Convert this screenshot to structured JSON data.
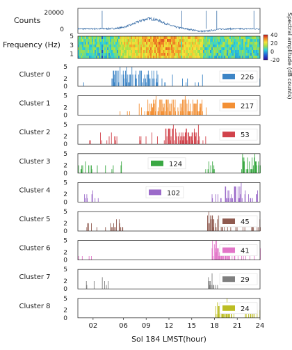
{
  "chart_data": {
    "type": "bar",
    "xlabel": "Sol 184 LMST(hour)",
    "xlim": [
      0,
      24
    ],
    "xticks": [
      2,
      6,
      9,
      12,
      15,
      18,
      21,
      24
    ],
    "xtick_labels": [
      "02",
      "06",
      "09",
      "12",
      "15",
      "18",
      "21",
      "24"
    ],
    "counts_panel": {
      "ylabel": "Counts",
      "ylim": [
        -5000,
        25000
      ],
      "yticks": [
        0,
        20000
      ],
      "color": "#3b6fa8",
      "baseline": 500,
      "hump_center_hour": 9.5,
      "hump_peak": 12000,
      "trough_center_hour": 16.5,
      "trough_value": -3000,
      "spike_hours": [
        3.2,
        13.7,
        16.9,
        18.3,
        23.2
      ],
      "spike_value": 22000
    },
    "spectrogram": {
      "ylabel": "Frequency (Hz)",
      "ylim": [
        0,
        5
      ],
      "yticks": [
        1,
        3,
        5
      ],
      "colorbar_label": "Spectral amplitude (dB counts)",
      "colorbar_range": [
        -20,
        40
      ],
      "colorbar_ticks": [
        40,
        20,
        0,
        -20
      ],
      "loud_interval_hours": [
        5.5,
        16.5
      ]
    },
    "clusters": [
      {
        "name": "Cluster 0",
        "count": "226",
        "color": "#3d85c6",
        "ylim": [
          0,
          5
        ],
        "yticks": [
          0,
          2,
          5
        ],
        "active_hours": [
          [
            0.5,
            16.5
          ],
          [
            23.6,
            24
          ]
        ],
        "peak_hours": [
          4.5,
          10.5
        ]
      },
      {
        "name": "Cluster 1",
        "count": "217",
        "color": "#f39035",
        "ylim": [
          0,
          5
        ],
        "yticks": [
          0,
          2,
          5
        ],
        "active_hours": [
          [
            5.5,
            17
          ]
        ],
        "peak_hours": [
          9,
          16.5
        ]
      },
      {
        "name": "Cluster 2",
        "count": "53",
        "color": "#d1424b",
        "ylim": [
          0,
          5
        ],
        "yticks": [
          0,
          2,
          5
        ],
        "active_hours": [
          [
            1,
            17
          ]
        ],
        "peak_hours": [
          11.5,
          16
        ]
      },
      {
        "name": "Cluster 3",
        "count": "124",
        "color": "#3aa843",
        "ylim": [
          0,
          5
        ],
        "yticks": [
          0,
          2,
          5
        ],
        "active_hours": [
          [
            0,
            6
          ],
          [
            16.3,
            18
          ],
          [
            21,
            24
          ]
        ],
        "peak_hours": [
          21.5,
          24
        ]
      },
      {
        "name": "Cluster 4",
        "count": "102",
        "color": "#9b6ac9",
        "ylim": [
          0,
          5
        ],
        "yticks": [
          0,
          2,
          5
        ],
        "active_hours": [
          [
            0,
            3
          ],
          [
            16.8,
            24
          ]
        ],
        "peak_hours": [
          19,
          21.5
        ]
      },
      {
        "name": "Cluster 5",
        "count": "45",
        "color": "#8f5a4f",
        "ylim": [
          0,
          5
        ],
        "yticks": [
          0,
          2,
          5
        ],
        "active_hours": [
          [
            0,
            6
          ],
          [
            17,
            24
          ]
        ],
        "peak_hours": [
          17,
          18.5
        ]
      },
      {
        "name": "Cluster 6",
        "count": "41",
        "color": "#e275c8",
        "ylim": [
          0,
          5
        ],
        "yticks": [
          0,
          2,
          5
        ],
        "active_hours": [
          [
            0,
            2
          ],
          [
            17.5,
            24
          ]
        ],
        "peak_hours": [
          17.5,
          20
        ]
      },
      {
        "name": "Cluster 7",
        "count": "29",
        "color": "#7f7f7f",
        "ylim": [
          0,
          5
        ],
        "yticks": [
          0,
          2,
          5
        ],
        "active_hours": [
          [
            0.5,
            4
          ],
          [
            15.5,
            18.5
          ]
        ],
        "peak_hours": [
          17,
          18
        ]
      },
      {
        "name": "Cluster 8",
        "count": "24",
        "color": "#bcbd22",
        "ylim": [
          0,
          5
        ],
        "yticks": [
          0,
          2,
          5
        ],
        "active_hours": [
          [
            18,
            24
          ]
        ],
        "peak_hours": [
          18,
          20
        ]
      }
    ]
  }
}
